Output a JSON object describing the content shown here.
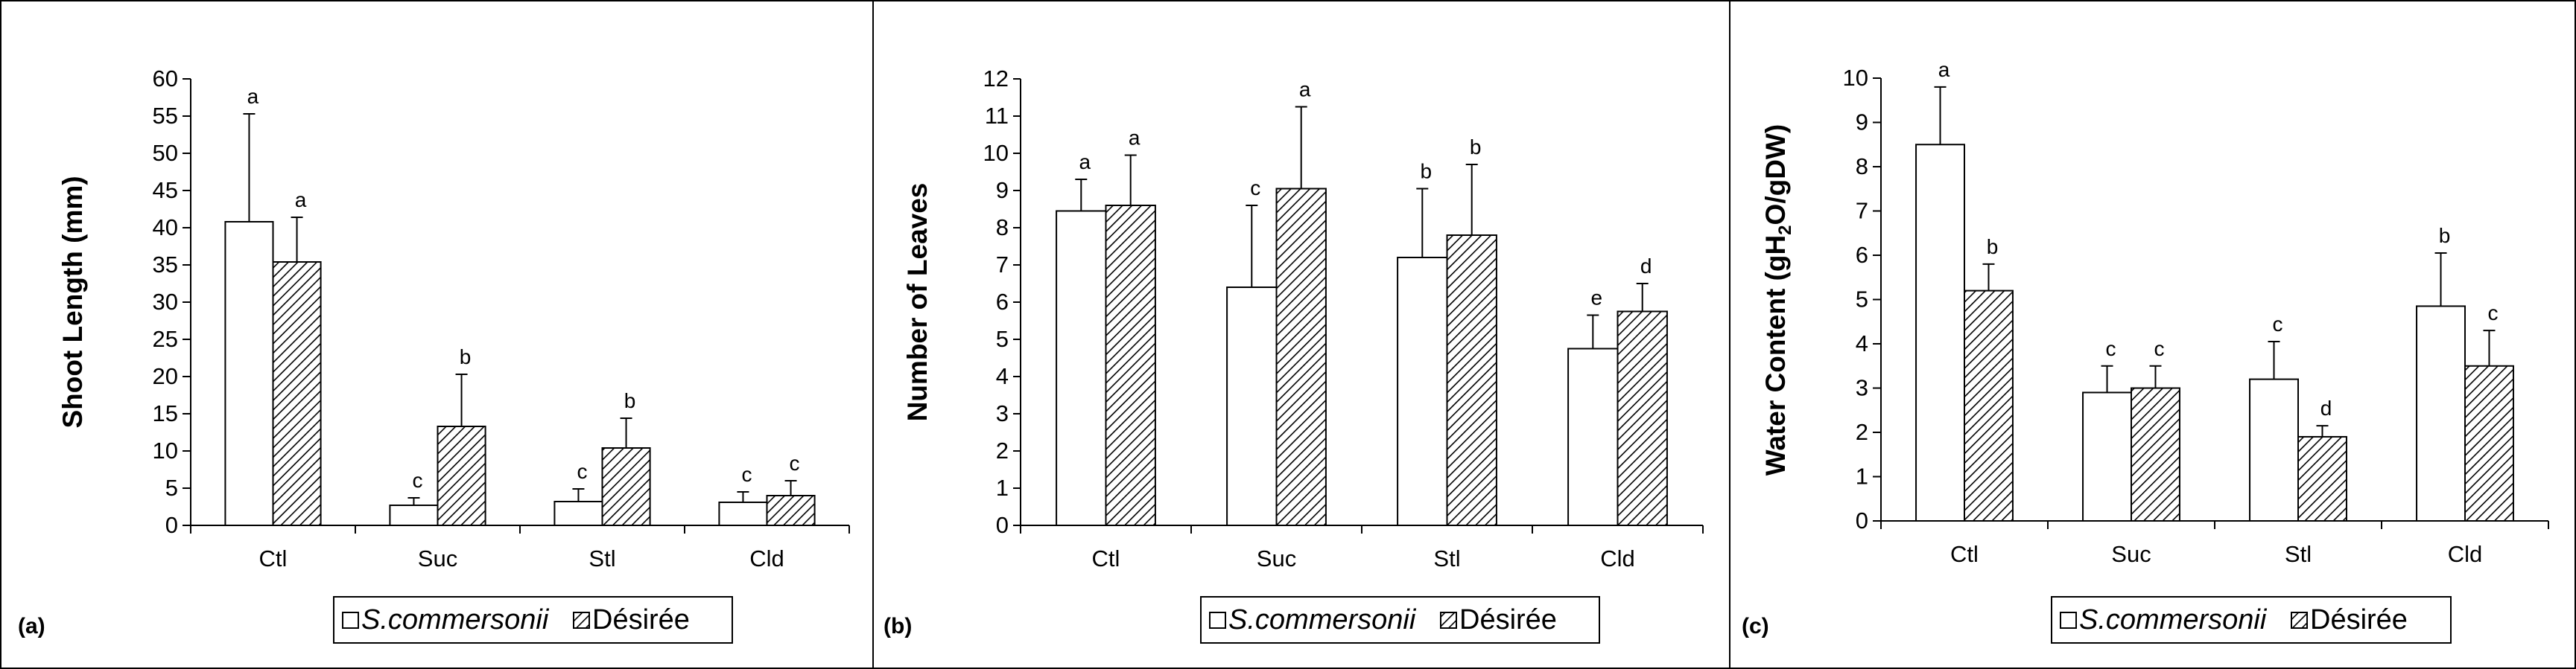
{
  "legend": {
    "series_a": "S.commersonii",
    "series_b": "Désirée"
  },
  "chart_data": [
    {
      "type": "bar",
      "panel_label": "(a)",
      "ylabel": "Shoot  Length (mm)",
      "ylim": [
        0,
        60
      ],
      "ytick_step": 5,
      "categories": [
        "Ctl",
        "Suc",
        "Stl",
        "Cld"
      ],
      "series": [
        {
          "name": "S.commersonii",
          "values": [
            40.8,
            2.7,
            3.2,
            3.1
          ],
          "errors": [
            14.5,
            1.0,
            1.7,
            1.4
          ],
          "letters": [
            "a",
            "c",
            "c",
            "c"
          ]
        },
        {
          "name": "Désirée",
          "values": [
            35.4,
            13.3,
            10.4,
            4.0
          ],
          "errors": [
            6.0,
            7.0,
            4.0,
            2.0
          ],
          "letters": [
            "a",
            "b",
            "b",
            "c"
          ]
        }
      ]
    },
    {
      "type": "bar",
      "panel_label": "(b)",
      "ylabel": "Number of Leaves",
      "ylim": [
        0,
        12
      ],
      "ytick_step": 1,
      "categories": [
        "Ctl",
        "Suc",
        "Stl",
        "Cld"
      ],
      "series": [
        {
          "name": "S.commersonii",
          "values": [
            8.45,
            6.4,
            7.2,
            4.75
          ],
          "errors": [
            0.85,
            2.2,
            1.85,
            0.9
          ],
          "letters": [
            "a",
            "c",
            "b",
            "e"
          ]
        },
        {
          "name": "Désirée",
          "values": [
            8.6,
            9.05,
            7.8,
            5.75
          ],
          "errors": [
            1.35,
            2.2,
            1.9,
            0.75
          ],
          "letters": [
            "a",
            "a",
            "b",
            "d"
          ]
        }
      ]
    },
    {
      "type": "bar",
      "panel_label": "(c)",
      "ylabel_pre": "Water Content (gH",
      "ylabel_sub": "2",
      "ylabel_post": "O/gDW)",
      "ylim": [
        0,
        10
      ],
      "ytick_step": 1,
      "categories": [
        "Ctl",
        "Suc",
        "Stl",
        "Cld"
      ],
      "series": [
        {
          "name": "S.commersonii",
          "values": [
            8.5,
            2.9,
            3.2,
            4.85
          ],
          "errors": [
            1.3,
            0.6,
            0.85,
            1.2
          ],
          "letters": [
            "a",
            "c",
            "c",
            "b"
          ]
        },
        {
          "name": "Désirée",
          "values": [
            5.2,
            3.0,
            1.9,
            3.5
          ],
          "errors": [
            0.6,
            0.5,
            0.25,
            0.8
          ],
          "letters": [
            "b",
            "c",
            "d",
            "c"
          ]
        }
      ]
    }
  ]
}
